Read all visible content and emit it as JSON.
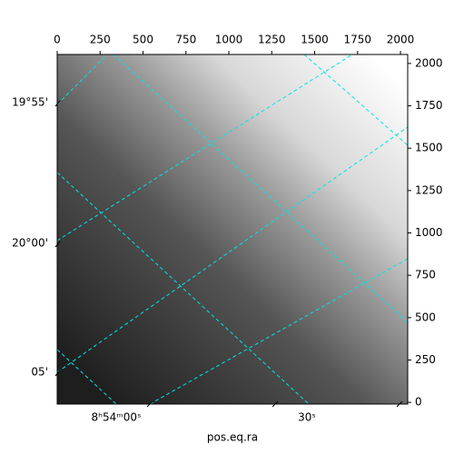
{
  "chart_data": {
    "type": "image",
    "x_label": "pos.eq.ra",
    "xlim": [
      0,
      2042
    ],
    "ylim": [
      -10,
      2053
    ],
    "xticks": [
      0,
      250,
      500,
      750,
      1000,
      1250,
      1500,
      1750,
      2000
    ],
    "yticks": [
      0,
      250,
      500,
      750,
      1000,
      1250,
      1500,
      1750,
      2000
    ],
    "dec_ticks": [
      "19°55'",
      "20°00'",
      "05'"
    ],
    "ra_ticks": [
      "8ʰ54ᵐ00ˢ",
      "30ˢ"
    ],
    "grid_color": "#00e5e5"
  }
}
